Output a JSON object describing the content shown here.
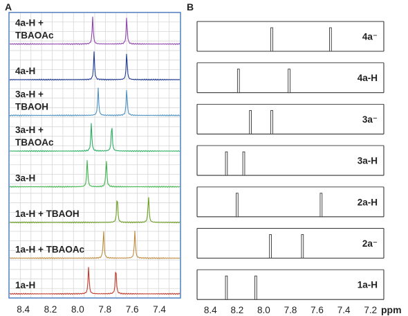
{
  "chart_data": [
    {
      "panel": "A",
      "type": "line",
      "x_ticks": [
        "8.4",
        "8.2",
        "8.0",
        "7.8",
        "7.6",
        "7.4"
      ],
      "xlim": [
        8.5,
        7.25
      ],
      "x_reversed": true,
      "grid": true,
      "series": [
        {
          "label_lines": [
            "4a-H +",
            "TBAOAc"
          ],
          "color": "#8e44ad",
          "peaks": [
            7.89,
            7.64
          ]
        },
        {
          "label_lines": [
            "4a-H"
          ],
          "color": "#1f3a93",
          "peaks": [
            7.88,
            7.64
          ]
        },
        {
          "label_lines": [
            "3a-H +",
            "TBAOH"
          ],
          "color": "#4a90c2",
          "peaks": [
            7.85,
            7.64
          ]
        },
        {
          "label_lines": [
            "3a-H +",
            "TBAOAc"
          ],
          "color": "#27ae60",
          "peaks": [
            7.9,
            7.75
          ]
        },
        {
          "label_lines": [
            "3a-H"
          ],
          "color": "#3cb44b",
          "peaks": [
            7.93,
            7.79
          ]
        },
        {
          "label_lines": [
            "1a-H + TBAOH"
          ],
          "color": "#6b9e23",
          "peaks": [
            7.71,
            7.48
          ]
        },
        {
          "label_lines": [
            "1a-H + TBAOAc"
          ],
          "color": "#c08a3e",
          "peaks": [
            7.81,
            7.58
          ]
        },
        {
          "label_lines": [
            "1a-H"
          ],
          "color": "#c0392b",
          "peaks": [
            7.92,
            7.72
          ]
        }
      ]
    },
    {
      "panel": "B",
      "type": "bar",
      "x_ticks": [
        "8.4",
        "8.2",
        "8.0",
        "7.8",
        "7.6",
        "7.4",
        "7.2"
      ],
      "xlim": [
        8.5,
        7.1
      ],
      "x_reversed": true,
      "xlabel": "ppm",
      "grid": false,
      "rows": [
        {
          "label": "4a⁻",
          "peaks": [
            7.94,
            7.5
          ]
        },
        {
          "label": "4a-H",
          "peaks": [
            8.19,
            7.81
          ]
        },
        {
          "label": "3a⁻",
          "peaks": [
            8.1,
            7.94
          ]
        },
        {
          "label": "3a-H",
          "peaks": [
            8.28,
            8.15
          ]
        },
        {
          "label": "2a-H",
          "peaks": [
            8.2,
            7.57
          ]
        },
        {
          "label": "2a⁻",
          "peaks": [
            7.95,
            7.71
          ]
        },
        {
          "label": "1a-H",
          "peaks": [
            8.28,
            8.06
          ]
        }
      ]
    }
  ]
}
